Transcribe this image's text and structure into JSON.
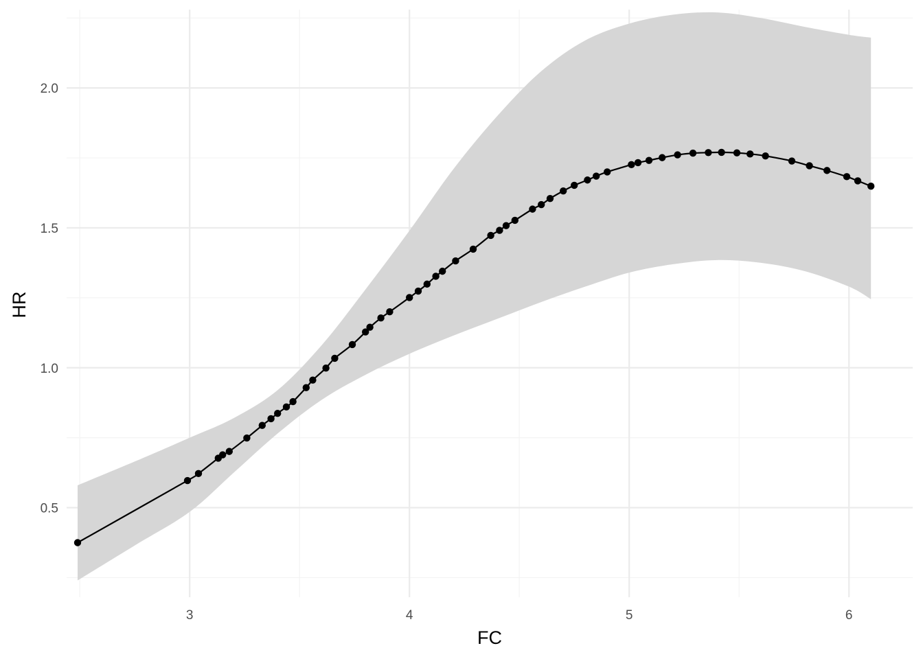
{
  "chart_data": {
    "type": "line",
    "title": "",
    "xlabel": "FC",
    "ylabel": "HR",
    "xlim": [
      2.44,
      6.29
    ],
    "ylim": [
      0.18,
      2.28
    ],
    "x_ticks": [
      3,
      4,
      5,
      6
    ],
    "x_tick_labels": [
      "3",
      "4",
      "5",
      "6"
    ],
    "y_ticks": [
      0.5,
      1.0,
      1.5,
      2.0
    ],
    "y_tick_labels": [
      "0.5",
      "1.0",
      "1.5",
      "2.0"
    ],
    "x_minor_ticks": [
      2.5,
      3.5,
      4.5,
      5.5
    ],
    "y_minor_ticks": [
      0.25,
      0.75,
      1.25,
      1.75,
      2.25
    ],
    "grid": true,
    "legend": "none",
    "colors": {
      "line": "#000000",
      "points": "#000000",
      "ribbon": "#d6d6d6",
      "background": "#ffffff"
    },
    "series": [
      {
        "x": [
          2.49,
          2.99,
          3.04,
          3.13,
          3.15,
          3.18,
          3.26,
          3.33,
          3.37,
          3.4,
          3.44,
          3.47,
          3.53,
          3.56,
          3.62,
          3.66,
          3.74,
          3.8,
          3.82,
          3.87,
          3.91,
          4.0,
          4.04,
          4.08,
          4.12,
          4.15,
          4.21,
          4.29,
          4.37,
          4.41,
          4.44,
          4.48,
          4.56,
          4.6,
          4.64,
          4.7,
          4.75,
          4.81,
          4.85,
          4.9,
          5.01,
          5.04,
          5.09,
          5.15,
          5.22,
          5.29,
          5.36,
          5.42,
          5.49,
          5.55,
          5.62,
          5.74,
          5.82,
          5.9,
          5.99,
          6.04,
          6.1
        ],
        "y": [
          0.375,
          0.597,
          0.622,
          0.677,
          0.689,
          0.701,
          0.749,
          0.794,
          0.818,
          0.837,
          0.86,
          0.879,
          0.929,
          0.956,
          0.999,
          1.034,
          1.083,
          1.128,
          1.145,
          1.178,
          1.2,
          1.251,
          1.274,
          1.299,
          1.327,
          1.345,
          1.382,
          1.424,
          1.473,
          1.491,
          1.508,
          1.527,
          1.567,
          1.583,
          1.605,
          1.632,
          1.652,
          1.671,
          1.685,
          1.7,
          1.726,
          1.733,
          1.741,
          1.751,
          1.761,
          1.767,
          1.769,
          1.77,
          1.768,
          1.764,
          1.757,
          1.739,
          1.722,
          1.705,
          1.683,
          1.668,
          1.649
        ]
      }
    ],
    "ribbon": {
      "x": [
        2.49,
        2.75,
        3.0,
        3.2,
        3.4,
        3.6,
        3.8,
        4.0,
        4.2,
        4.4,
        4.6,
        4.8,
        5.0,
        5.2,
        5.4,
        5.6,
        5.8,
        6.0,
        6.1
      ],
      "lower": [
        0.24,
        0.365,
        0.485,
        0.625,
        0.765,
        0.885,
        0.975,
        1.05,
        1.115,
        1.175,
        1.235,
        1.29,
        1.34,
        1.37,
        1.385,
        1.375,
        1.345,
        1.29,
        1.245
      ],
      "upper": [
        0.58,
        0.665,
        0.75,
        0.82,
        0.92,
        1.08,
        1.28,
        1.49,
        1.71,
        1.9,
        2.06,
        2.17,
        2.23,
        2.262,
        2.27,
        2.25,
        2.218,
        2.19,
        2.18
      ]
    }
  }
}
